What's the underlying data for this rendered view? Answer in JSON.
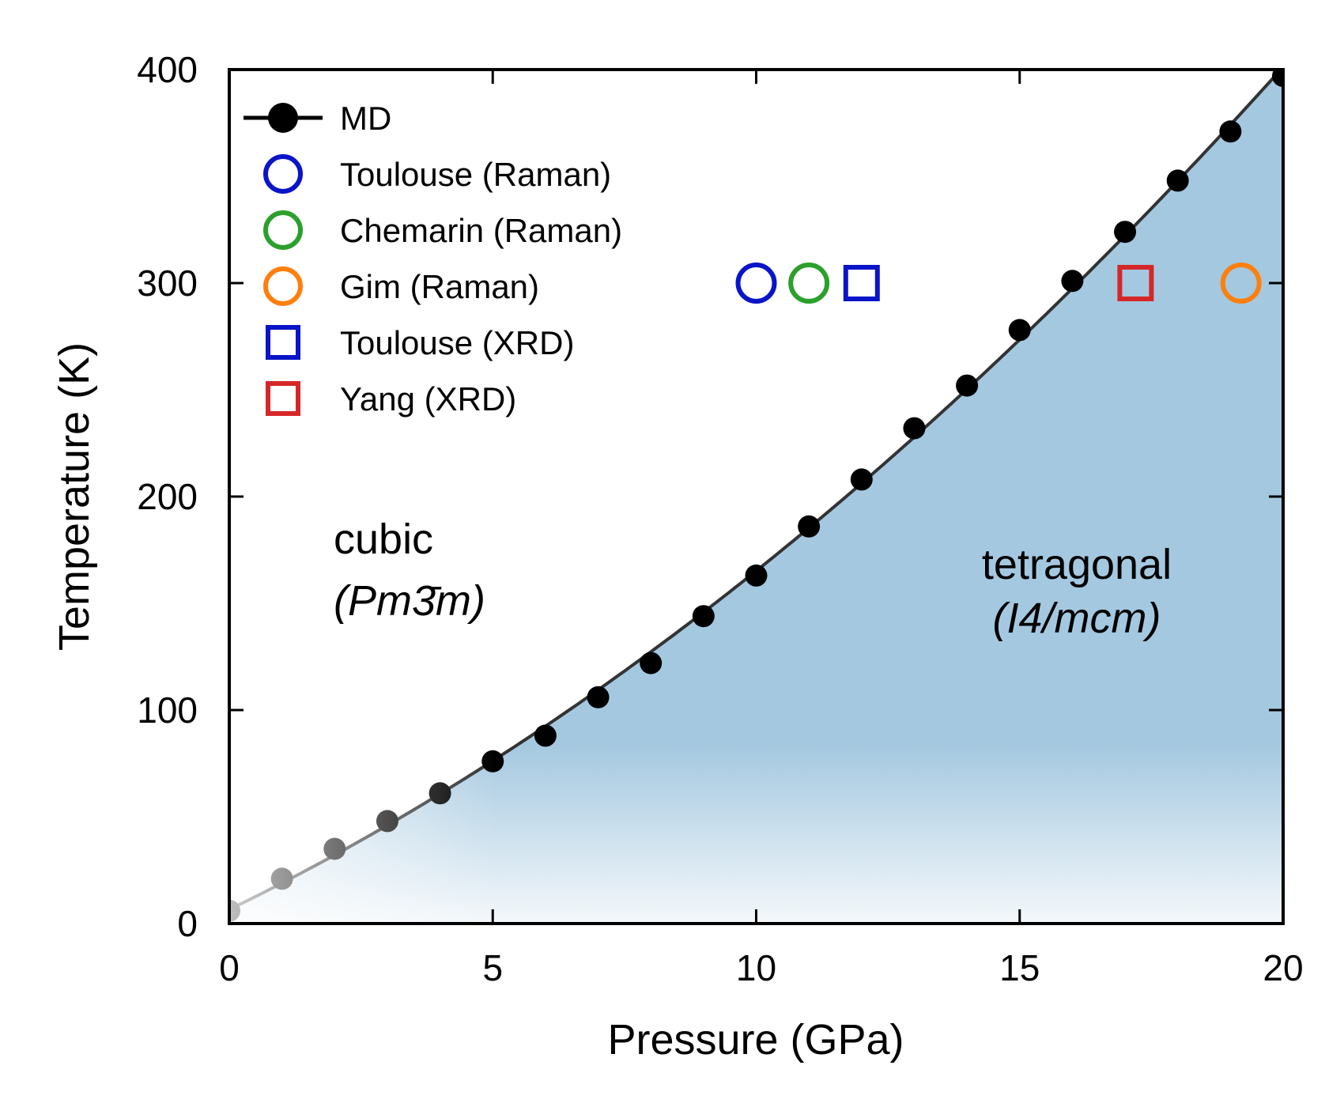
{
  "chart_data": {
    "type": "scatter",
    "title": "",
    "xlabel": "Pressure (GPa)",
    "ylabel": "Temperature (K)",
    "xlim": [
      0,
      20
    ],
    "ylim": [
      0,
      400
    ],
    "xticks": [
      0,
      5,
      10,
      15,
      20
    ],
    "yticks": [
      0,
      100,
      200,
      300,
      400
    ],
    "xtick_labels": [
      "0",
      "5",
      "10",
      "15",
      "20"
    ],
    "ytick_labels": [
      "0",
      "100",
      "200",
      "300",
      "400"
    ],
    "grid": false,
    "legend_position": "top-left",
    "series": [
      {
        "name": "MD",
        "style": "line-marker",
        "marker": "filled-circle",
        "color": "#000000",
        "x": [
          0,
          1,
          2,
          3,
          4,
          5,
          6,
          7,
          8,
          9,
          10,
          11,
          12,
          13,
          14,
          15,
          16,
          17,
          18,
          19,
          20
        ],
        "y": [
          6,
          21,
          35,
          48,
          61,
          76,
          88,
          106,
          122,
          144,
          163,
          186,
          208,
          232,
          252,
          278,
          301,
          324,
          348,
          371,
          397
        ]
      },
      {
        "name": "Toulouse (Raman)",
        "marker": "open-circle",
        "color": "#0a14c8",
        "x": [
          10
        ],
        "y": [
          300
        ]
      },
      {
        "name": "Chemarin (Raman)",
        "marker": "open-circle",
        "color": "#2ca02c",
        "x": [
          11
        ],
        "y": [
          300
        ]
      },
      {
        "name": "Gim (Raman)",
        "marker": "open-circle",
        "color": "#ff7f0e",
        "x": [
          19.2
        ],
        "y": [
          300
        ]
      },
      {
        "name": "Toulouse (XRD)",
        "marker": "open-square",
        "color": "#0a14c8",
        "x": [
          12
        ],
        "y": [
          300
        ]
      },
      {
        "name": "Yang (XRD)",
        "marker": "open-square",
        "color": "#d62728",
        "x": [
          17.2
        ],
        "y": [
          300
        ]
      }
    ],
    "shaded_region": {
      "color": "#a4c8e0",
      "fade_color": "#f4f8fb"
    },
    "annotations": {
      "cubic_name": "cubic",
      "cubic_group": "(Pm3̄m)",
      "tetragonal_name": "tetragonal",
      "tetragonal_group": "(I4/mcm)"
    }
  }
}
